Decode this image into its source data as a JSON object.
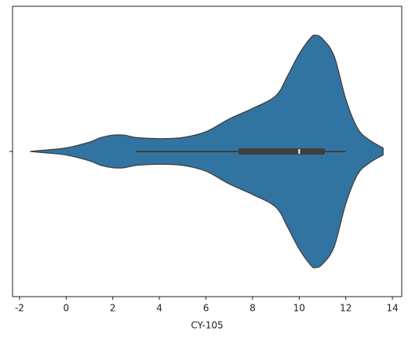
{
  "chart_data": {
    "type": "violin",
    "xlabel": "CY-105",
    "categories": [
      null
    ],
    "violin": {
      "x": [
        -1.55,
        -1,
        0,
        1,
        1.5,
        2,
        2.5,
        3,
        4,
        5,
        6,
        7,
        8,
        9,
        9.5,
        10,
        10.5,
        10.7,
        11,
        11.5,
        12,
        12.5,
        13,
        13.6
      ],
      "density": [
        0,
        0.01,
        0.03,
        0.08,
        0.12,
        0.14,
        0.14,
        0.12,
        0.11,
        0.12,
        0.17,
        0.28,
        0.37,
        0.48,
        0.65,
        0.84,
        0.98,
        1,
        0.97,
        0.82,
        0.45,
        0.2,
        0.1,
        0.03
      ]
    },
    "box": {
      "whisker_low": 3.0,
      "q1": 7.4,
      "median": 10.0,
      "q3": 11.1,
      "whisker_high": 12.0
    },
    "color": "#3274a1",
    "edge_color": "#3f3f3f",
    "xlim": [
      -2.3,
      14.4
    ],
    "xticks": [
      -2,
      0,
      2,
      4,
      6,
      8,
      10,
      12,
      14
    ]
  }
}
